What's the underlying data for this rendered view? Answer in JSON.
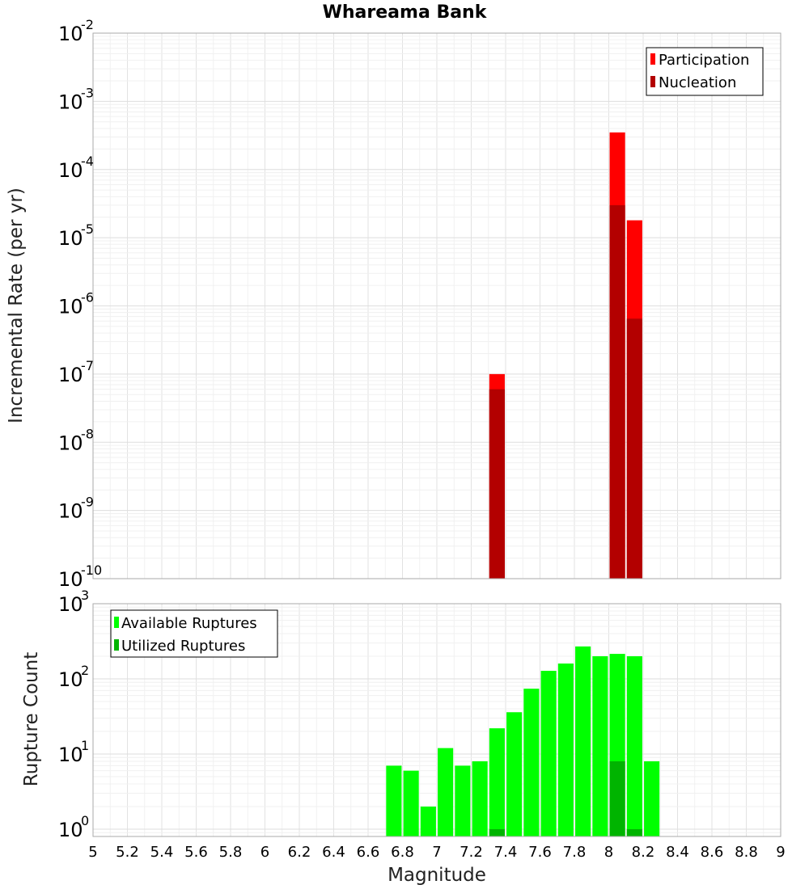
{
  "title": "Whareama Bank",
  "colors": {
    "participation": "#ff0000",
    "nucleation": "#b30000",
    "available": "#00ff00",
    "utilized": "#00b400"
  },
  "chart_data": [
    {
      "type": "bar",
      "name": "rate",
      "ylabel": "Incremental Rate (per yr)",
      "ylog": true,
      "ylim": [
        1e-10,
        0.01
      ],
      "xlim": [
        5,
        9
      ],
      "grid": true,
      "legend_position": "top-right",
      "series": [
        {
          "name": "Participation",
          "color": "#ff0000",
          "points": [
            [
              7.35,
              1e-07
            ],
            [
              8.05,
              0.00035
            ],
            [
              8.15,
              1.8e-05
            ]
          ]
        },
        {
          "name": "Nucleation",
          "color": "#b30000",
          "points": [
            [
              7.35,
              6e-08
            ],
            [
              8.05,
              3e-05
            ],
            [
              8.15,
              6.5e-07
            ]
          ]
        }
      ]
    },
    {
      "type": "bar",
      "name": "count",
      "xlabel": "Magnitude",
      "ylabel": "Rupture Count",
      "ylog": true,
      "ylim": [
        0.8,
        1000
      ],
      "xlim": [
        5,
        9
      ],
      "grid": true,
      "legend_position": "top-left",
      "series": [
        {
          "name": "Available Ruptures",
          "color": "#00ff00",
          "points": [
            [
              6.75,
              7
            ],
            [
              6.85,
              6
            ],
            [
              6.95,
              2
            ],
            [
              7.05,
              12
            ],
            [
              7.15,
              7
            ],
            [
              7.25,
              8
            ],
            [
              7.35,
              22
            ],
            [
              7.45,
              36
            ],
            [
              7.55,
              74
            ],
            [
              7.65,
              128
            ],
            [
              7.75,
              160
            ],
            [
              7.85,
              270
            ],
            [
              7.95,
              200
            ],
            [
              8.05,
              215
            ],
            [
              8.15,
              200
            ],
            [
              8.25,
              8
            ]
          ]
        },
        {
          "name": "Utilized Ruptures",
          "color": "#00b400",
          "points": [
            [
              7.35,
              1
            ],
            [
              8.05,
              8
            ],
            [
              8.15,
              1
            ]
          ]
        }
      ]
    }
  ],
  "x_ticks": [
    "5",
    "5.2",
    "5.4",
    "5.6",
    "5.8",
    "6",
    "6.2",
    "6.4",
    "6.6",
    "6.8",
    "7",
    "7.2",
    "7.4",
    "7.6",
    "7.8",
    "8",
    "8.2",
    "8.4",
    "8.6",
    "8.8",
    "9"
  ],
  "top_yticks": [
    {
      "base": "10",
      "exp": "-10",
      "value": 1e-10
    },
    {
      "base": "10",
      "exp": "-9",
      "value": 1e-09
    },
    {
      "base": "10",
      "exp": "-8",
      "value": 1e-08
    },
    {
      "base": "10",
      "exp": "-7",
      "value": 1e-07
    },
    {
      "base": "10",
      "exp": "-6",
      "value": 1e-06
    },
    {
      "base": "10",
      "exp": "-5",
      "value": 1e-05
    },
    {
      "base": "10",
      "exp": "-4",
      "value": 0.0001
    },
    {
      "base": "10",
      "exp": "-3",
      "value": 0.001
    },
    {
      "base": "10",
      "exp": "-2",
      "value": 0.01
    }
  ],
  "bottom_yticks": [
    {
      "base": "10",
      "exp": "0",
      "value": 1
    },
    {
      "base": "10",
      "exp": "1",
      "value": 10
    },
    {
      "base": "10",
      "exp": "2",
      "value": 100
    },
    {
      "base": "10",
      "exp": "3",
      "value": 1000
    }
  ]
}
